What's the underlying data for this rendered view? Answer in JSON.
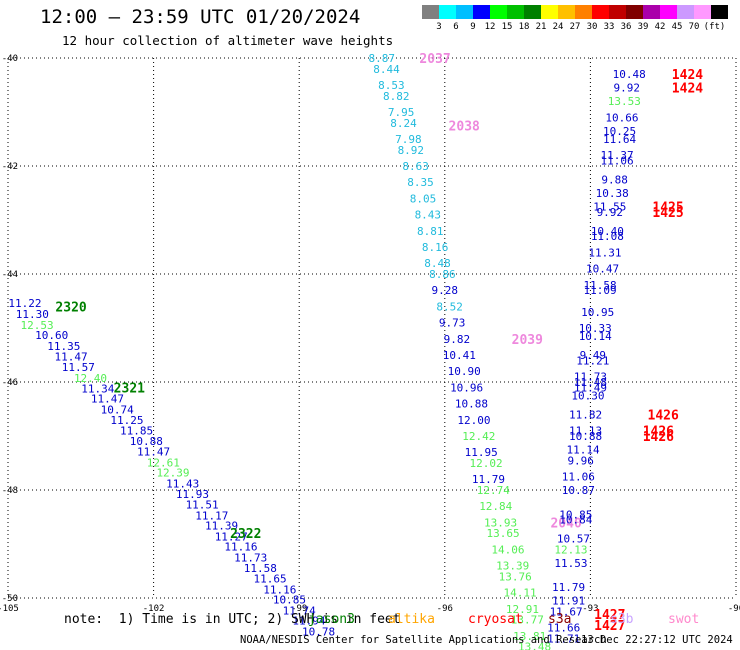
{
  "header": {
    "title": "12:00 — 23:59 UTC 01/20/2024",
    "subtitle": "12 hour collection of altimeter wave heights"
  },
  "color_scale": {
    "unit": "(ft)",
    "labels": [
      "3",
      "6",
      "9",
      "12",
      "15",
      "18",
      "21",
      "24",
      "27",
      "30",
      "33",
      "36",
      "39",
      "42",
      "45",
      "70"
    ],
    "colors": [
      "#808080",
      "#00ffff",
      "#00bfff",
      "#0000ff",
      "#00ff00",
      "#00c000",
      "#008000",
      "#ffff00",
      "#ffc000",
      "#ff8000",
      "#ff0000",
      "#c00000",
      "#800000",
      "#aa00aa",
      "#ff00ff",
      "#cc99ff",
      "#ff99ff",
      "#000000"
    ]
  },
  "footer": {
    "note": "note:  1) Time is in UTC; 2) SWH is in feet",
    "satellites": [
      {
        "name": "jason3",
        "color": "#008000"
      },
      {
        "name": "altika",
        "color": "#ffa500"
      },
      {
        "name": "cryosat",
        "color": "#ff0000"
      },
      {
        "name": "s3a",
        "color": "#8b0000"
      },
      {
        "name": "s3b",
        "color": "#c8a2ff"
      },
      {
        "name": "swot",
        "color": "#ff88cc"
      }
    ],
    "credit": "NOAA/NESDIS Center for Satellite Applications and Research",
    "stamp": "13 Dec 22:27:12 UTC 2024"
  },
  "chart_data": {
    "type": "scatter",
    "x_ticks": [
      "-105",
      "-102",
      "-99",
      "-96",
      "-93",
      "-90"
    ],
    "y_ticks": [
      "-40",
      "-42",
      "-44",
      "-46",
      "-48",
      "-50"
    ],
    "xlim": [
      -105,
      -90
    ],
    "ylim": [
      -50,
      -40
    ],
    "grid": true,
    "tracks": [
      {
        "name": "jason3",
        "points": [
          {
            "x": -104.65,
            "y": -44.54,
            "v": "11.22",
            "c": "#0000cc"
          },
          {
            "x": -104.5,
            "y": -44.74,
            "v": "11.30",
            "c": "#0000cc"
          },
          {
            "x": -104.4,
            "y": -44.94,
            "v": "12.53",
            "c": "#55ee55"
          },
          {
            "x": -104.1,
            "y": -45.13,
            "v": "10.60",
            "c": "#0000cc"
          },
          {
            "x": -103.85,
            "y": -45.33,
            "v": "11.35",
            "c": "#0000cc"
          },
          {
            "x": -103.7,
            "y": -45.53,
            "v": "11.47",
            "c": "#0000cc"
          },
          {
            "x": -103.55,
            "y": -45.72,
            "v": "11.57",
            "c": "#0000cc"
          },
          {
            "x": -103.3,
            "y": -45.93,
            "v": "12.40",
            "c": "#55ee55"
          },
          {
            "x": -103.15,
            "y": -46.12,
            "v": "11.34",
            "c": "#0000cc"
          },
          {
            "x": -102.95,
            "y": -46.31,
            "v": "11.47",
            "c": "#0000cc"
          },
          {
            "x": -102.75,
            "y": -46.51,
            "v": "10.74",
            "c": "#0000cc"
          },
          {
            "x": -102.55,
            "y": -46.7,
            "v": "11.25",
            "c": "#0000cc"
          },
          {
            "x": -102.35,
            "y": -46.9,
            "v": "11.85",
            "c": "#0000cc"
          },
          {
            "x": -102.15,
            "y": -47.09,
            "v": "10.88",
            "c": "#0000cc"
          },
          {
            "x": -102.0,
            "y": -47.29,
            "v": "11.47",
            "c": "#0000cc"
          },
          {
            "x": -101.8,
            "y": -47.49,
            "v": "12.61",
            "c": "#55ee55"
          },
          {
            "x": -101.6,
            "y": -47.68,
            "v": "12.39",
            "c": "#55ee55"
          },
          {
            "x": -101.4,
            "y": -47.88,
            "v": "11.43",
            "c": "#0000cc"
          },
          {
            "x": -101.2,
            "y": -48.07,
            "v": "11.93",
            "c": "#0000cc"
          },
          {
            "x": -101.0,
            "y": -48.27,
            "v": "11.51",
            "c": "#0000cc"
          },
          {
            "x": -100.8,
            "y": -48.47,
            "v": "11.17",
            "c": "#0000cc"
          },
          {
            "x": -100.6,
            "y": -48.66,
            "v": "11.39",
            "c": "#0000cc"
          },
          {
            "x": -100.4,
            "y": -48.86,
            "v": "11.27",
            "c": "#0000cc"
          },
          {
            "x": -100.2,
            "y": -49.05,
            "v": "11.16",
            "c": "#0000cc"
          },
          {
            "x": -100.0,
            "y": -49.25,
            "v": "11.73",
            "c": "#0000cc"
          },
          {
            "x": -99.8,
            "y": -49.44,
            "v": "11.58",
            "c": "#0000cc"
          },
          {
            "x": -99.6,
            "y": -49.64,
            "v": "11.65",
            "c": "#0000cc"
          },
          {
            "x": -99.4,
            "y": -49.84,
            "v": "11.16",
            "c": "#0000cc"
          },
          {
            "x": -99.2,
            "y": -50.03,
            "v": "10.85",
            "c": "#0000cc"
          },
          {
            "x": -99.0,
            "y": -50.23,
            "v": "11.74",
            "c": "#0000cc"
          },
          {
            "x": -98.8,
            "y": -50.42,
            "v": "11.94",
            "c": "#0000cc"
          },
          {
            "x": -98.6,
            "y": -50.62,
            "v": "10.78",
            "c": "#0000cc"
          }
        ],
        "times": [
          {
            "x": -103.7,
            "y": -44.6,
            "t": "2320",
            "c": "#008000"
          },
          {
            "x": -102.5,
            "y": -46.1,
            "t": "2321",
            "c": "#008000"
          },
          {
            "x": -100.1,
            "y": -48.8,
            "t": "2322",
            "c": "#008000"
          }
        ]
      },
      {
        "name": "swot",
        "points": [
          {
            "x": -97.3,
            "y": -40.0,
            "v": "8.87",
            "c": "#22bbdd"
          },
          {
            "x": -97.2,
            "y": -40.2,
            "v": "8.44",
            "c": "#22bbdd"
          },
          {
            "x": -97.1,
            "y": -40.5,
            "v": "8.53",
            "c": "#22bbdd"
          },
          {
            "x": -97.0,
            "y": -40.7,
            "v": "8.82",
            "c": "#22bbdd"
          },
          {
            "x": -96.9,
            "y": -41.0,
            "v": "7.95",
            "c": "#22bbdd"
          },
          {
            "x": -96.85,
            "y": -41.2,
            "v": "8.24",
            "c": "#22bbdd"
          },
          {
            "x": -96.75,
            "y": -41.5,
            "v": "7.98",
            "c": "#22bbdd"
          },
          {
            "x": -96.7,
            "y": -41.7,
            "v": "8.92",
            "c": "#22bbdd"
          },
          {
            "x": -96.6,
            "y": -42.0,
            "v": "8.63",
            "c": "#22bbdd"
          },
          {
            "x": -96.5,
            "y": -42.3,
            "v": "8.35",
            "c": "#22bbdd"
          },
          {
            "x": -96.45,
            "y": -42.6,
            "v": "8.05",
            "c": "#22bbdd"
          },
          {
            "x": -96.35,
            "y": -42.9,
            "v": "8.43",
            "c": "#22bbdd"
          },
          {
            "x": -96.3,
            "y": -43.2,
            "v": "8.81",
            "c": "#22bbdd"
          },
          {
            "x": -96.2,
            "y": -43.5,
            "v": "8.16",
            "c": "#22bbdd"
          },
          {
            "x": -96.15,
            "y": -43.8,
            "v": "8.48",
            "c": "#22bbdd"
          },
          {
            "x": -96.05,
            "y": -44.0,
            "v": "8.86",
            "c": "#22bbdd"
          },
          {
            "x": -96.0,
            "y": -44.3,
            "v": "9.28",
            "c": "#0000cc"
          },
          {
            "x": -95.9,
            "y": -44.6,
            "v": "8.52",
            "c": "#22bbdd"
          },
          {
            "x": -95.85,
            "y": -44.9,
            "v": "9.73",
            "c": "#0000cc"
          },
          {
            "x": -95.75,
            "y": -45.2,
            "v": "9.82",
            "c": "#0000cc"
          },
          {
            "x": -95.7,
            "y": -45.5,
            "v": "10.41",
            "c": "#0000cc"
          },
          {
            "x": -95.6,
            "y": -45.8,
            "v": "10.90",
            "c": "#0000cc"
          },
          {
            "x": -95.55,
            "y": -46.1,
            "v": "10.96",
            "c": "#0000cc"
          },
          {
            "x": -95.45,
            "y": -46.4,
            "v": "10.88",
            "c": "#0000cc"
          },
          {
            "x": -95.4,
            "y": -46.7,
            "v": "12.00",
            "c": "#0000cc"
          },
          {
            "x": -95.3,
            "y": -47.0,
            "v": "12.42",
            "c": "#55ee55"
          },
          {
            "x": -95.25,
            "y": -47.3,
            "v": "11.95",
            "c": "#0000cc"
          },
          {
            "x": -95.15,
            "y": -47.5,
            "v": "12.02",
            "c": "#55ee55"
          },
          {
            "x": -95.1,
            "y": -47.8,
            "v": "11.79",
            "c": "#0000cc"
          },
          {
            "x": -95.0,
            "y": -48.0,
            "v": "12.74",
            "c": "#55ee55"
          },
          {
            "x": -94.95,
            "y": -48.3,
            "v": "12.84",
            "c": "#55ee55"
          },
          {
            "x": -94.85,
            "y": -48.6,
            "v": "13.93",
            "c": "#55ee55"
          },
          {
            "x": -94.8,
            "y": -48.8,
            "v": "13.65",
            "c": "#55ee55"
          },
          {
            "x": -94.7,
            "y": -49.1,
            "v": "14.06",
            "c": "#55ee55"
          },
          {
            "x": -94.6,
            "y": -49.4,
            "v": "13.39",
            "c": "#55ee55"
          },
          {
            "x": -94.55,
            "y": -49.6,
            "v": "13.76",
            "c": "#55ee55"
          },
          {
            "x": -94.45,
            "y": -49.9,
            "v": "14.11",
            "c": "#55ee55"
          },
          {
            "x": -94.4,
            "y": -50.2,
            "v": "12.91",
            "c": "#55ee55"
          },
          {
            "x": -94.3,
            "y": -50.4,
            "v": "13.77",
            "c": "#55ee55"
          },
          {
            "x": -94.25,
            "y": -50.7,
            "v": "13.81",
            "c": "#55ee55"
          },
          {
            "x": -94.15,
            "y": -50.9,
            "v": "13.48",
            "c": "#55ee55"
          }
        ],
        "times": [
          {
            "x": -96.2,
            "y": -40.0,
            "t": "2037",
            "c": "#ee88dd"
          },
          {
            "x": -95.6,
            "y": -41.25,
            "t": "2038",
            "c": "#ee88dd"
          },
          {
            "x": -94.3,
            "y": -45.2,
            "t": "2039",
            "c": "#ee88dd"
          },
          {
            "x": -93.5,
            "y": -48.6,
            "t": "2040",
            "c": "#ee88dd"
          }
        ]
      },
      {
        "name": "cryosat",
        "points": [
          {
            "x": -92.2,
            "y": -40.3,
            "v": "10.48",
            "c": "#0000cc"
          },
          {
            "x": -92.25,
            "y": -40.55,
            "v": "9.92",
            "c": "#0000cc"
          },
          {
            "x": -92.3,
            "y": -40.8,
            "v": "13.53",
            "c": "#55ee55"
          },
          {
            "x": -92.35,
            "y": -41.1,
            "v": "10.66",
            "c": "#0000cc"
          },
          {
            "x": -92.4,
            "y": -41.35,
            "v": "10.25",
            "c": "#0000cc"
          },
          {
            "x": -92.4,
            "y": -41.5,
            "v": "11.64",
            "c": "#0000cc"
          },
          {
            "x": -92.45,
            "y": -41.8,
            "v": "11.37",
            "c": "#0000cc"
          },
          {
            "x": -92.45,
            "y": -41.9,
            "v": "11.06",
            "c": "#0000cc"
          },
          {
            "x": -92.5,
            "y": -42.25,
            "v": "9.88",
            "c": "#0000cc"
          },
          {
            "x": -92.55,
            "y": -42.5,
            "v": "10.38",
            "c": "#0000cc"
          },
          {
            "x": -92.6,
            "y": -42.75,
            "v": "11.55",
            "c": "#0000cc"
          },
          {
            "x": -92.6,
            "y": -42.85,
            "v": "9.92",
            "c": "#0000cc"
          },
          {
            "x": -92.65,
            "y": -43.2,
            "v": "10.40",
            "c": "#0000cc"
          },
          {
            "x": -92.65,
            "y": -43.3,
            "v": "11.08",
            "c": "#0000cc"
          },
          {
            "x": -92.7,
            "y": -43.6,
            "v": "11.31",
            "c": "#0000cc"
          },
          {
            "x": -92.75,
            "y": -43.9,
            "v": "10.47",
            "c": "#0000cc"
          },
          {
            "x": -92.8,
            "y": -44.2,
            "v": "11.58",
            "c": "#0000cc"
          },
          {
            "x": -92.8,
            "y": -44.3,
            "v": "11.09",
            "c": "#0000cc"
          },
          {
            "x": -92.85,
            "y": -44.7,
            "v": "10.95",
            "c": "#0000cc"
          },
          {
            "x": -92.9,
            "y": -45.0,
            "v": "10.33",
            "c": "#0000cc"
          },
          {
            "x": -92.9,
            "y": -45.15,
            "v": "10.14",
            "c": "#0000cc"
          },
          {
            "x": -92.95,
            "y": -45.5,
            "v": "9.49",
            "c": "#0000cc"
          },
          {
            "x": -92.95,
            "y": -45.6,
            "v": "11.21",
            "c": "#0000cc"
          },
          {
            "x": -93.0,
            "y": -45.9,
            "v": "11.73",
            "c": "#0000cc"
          },
          {
            "x": -93.0,
            "y": -46.0,
            "v": "11.48",
            "c": "#0000cc"
          },
          {
            "x": -93.0,
            "y": -46.1,
            "v": "11.49",
            "c": "#0000cc"
          },
          {
            "x": -93.05,
            "y": -46.25,
            "v": "10.30",
            "c": "#0000cc"
          },
          {
            "x": -93.1,
            "y": -46.6,
            "v": "11.82",
            "c": "#0000cc"
          },
          {
            "x": -93.1,
            "y": -46.9,
            "v": "11.13",
            "c": "#0000cc"
          },
          {
            "x": -93.1,
            "y": -47.0,
            "v": "10.88",
            "c": "#0000cc"
          },
          {
            "x": -93.15,
            "y": -47.25,
            "v": "11.14",
            "c": "#0000cc"
          },
          {
            "x": -93.2,
            "y": -47.45,
            "v": "9.96",
            "c": "#0000cc"
          },
          {
            "x": -93.25,
            "y": -47.75,
            "v": "11.06",
            "c": "#0000cc"
          },
          {
            "x": -93.25,
            "y": -48.0,
            "v": "10.87",
            "c": "#0000cc"
          },
          {
            "x": -93.3,
            "y": -48.45,
            "v": "10.85",
            "c": "#0000cc"
          },
          {
            "x": -93.3,
            "y": -48.55,
            "v": "10.84",
            "c": "#0000cc"
          },
          {
            "x": -93.35,
            "y": -48.9,
            "v": "10.57",
            "c": "#0000cc"
          },
          {
            "x": -93.4,
            "y": -49.1,
            "v": "12.13",
            "c": "#55ee55"
          },
          {
            "x": -93.4,
            "y": -49.35,
            "v": "11.53",
            "c": "#0000cc"
          },
          {
            "x": -93.45,
            "y": -49.8,
            "v": "11.79",
            "c": "#0000cc"
          },
          {
            "x": -93.45,
            "y": -50.05,
            "v": "11.91",
            "c": "#0000cc"
          },
          {
            "x": -93.5,
            "y": -50.25,
            "v": "11.67",
            "c": "#0000cc"
          },
          {
            "x": -93.55,
            "y": -50.55,
            "v": "11.66",
            "c": "#0000cc"
          },
          {
            "x": -93.55,
            "y": -50.75,
            "v": "11.71",
            "c": "#0000cc"
          }
        ],
        "times": [
          {
            "x": -91.0,
            "y": -40.3,
            "t": "1424",
            "c": "#ff0000"
          },
          {
            "x": -91.0,
            "y": -40.55,
            "t": "1424",
            "c": "#ff0000"
          },
          {
            "x": -91.4,
            "y": -42.75,
            "t": "1425",
            "c": "#ff0000"
          },
          {
            "x": -91.4,
            "y": -42.85,
            "t": "1425",
            "c": "#ff0000"
          },
          {
            "x": -91.5,
            "y": -46.6,
            "t": "1426",
            "c": "#ff0000"
          },
          {
            "x": -91.6,
            "y": -46.9,
            "t": "1426",
            "c": "#ff0000"
          },
          {
            "x": -91.6,
            "y": -47.0,
            "t": "1426",
            "c": "#ff0000"
          },
          {
            "x": -92.6,
            "y": -50.3,
            "t": "1427",
            "c": "#ff0000"
          },
          {
            "x": -92.6,
            "y": -50.5,
            "t": "1427",
            "c": "#ff0000"
          }
        ]
      }
    ]
  }
}
